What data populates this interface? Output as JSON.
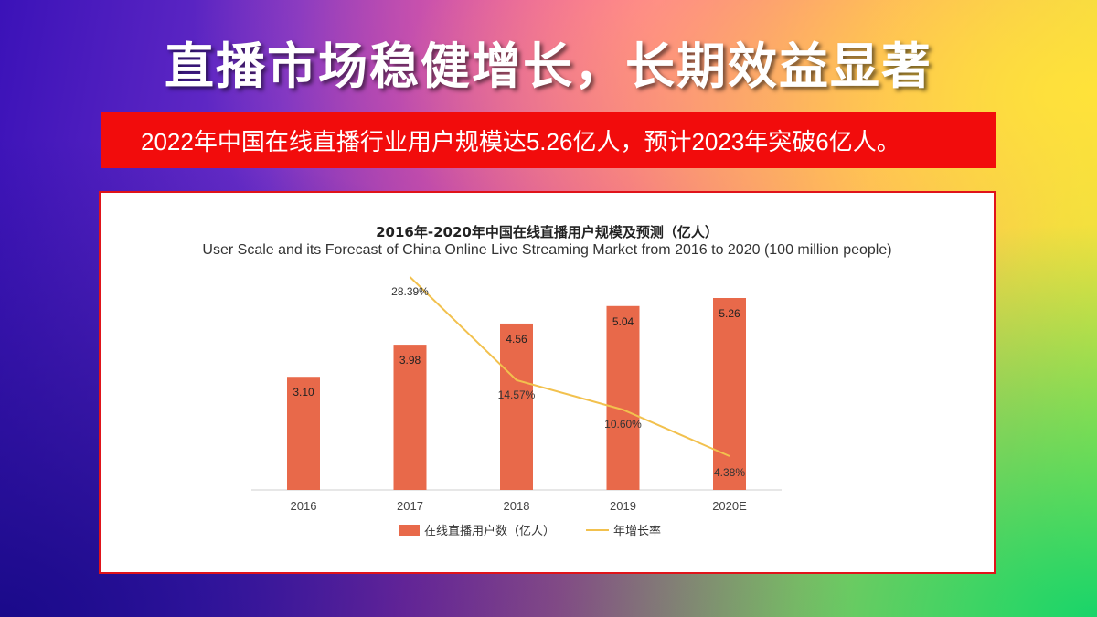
{
  "slide": {
    "title": "直播市场稳健增长，长期效益显著",
    "banner": "2022年中国在线直播行业用户规模达5.26亿人，预计2023年突破6亿人。"
  },
  "colors": {
    "bar": "#e8694a",
    "line": "#f2c14e",
    "banner": "#f20c0c",
    "panel_border": "#e0131a"
  },
  "chart_data": {
    "type": "bar",
    "title": "2016年-2020年中国在线直播用户规模及预测（亿人）",
    "subtitle": "User Scale and its Forecast of China Online Live Streaming Market from 2016 to 2020 (100 million people)",
    "categories": [
      "2016",
      "2017",
      "2018",
      "2019",
      "2020E"
    ],
    "series": [
      {
        "name": "在线直播用户数（亿人）",
        "type": "bar",
        "values": [
          3.1,
          3.98,
          4.56,
          5.04,
          5.26
        ],
        "labels": [
          "3.10",
          "3.98",
          "4.56",
          "5.04",
          "5.26"
        ]
      },
      {
        "name": "年增长率",
        "type": "line",
        "values": [
          null,
          28.39,
          14.57,
          10.6,
          4.38
        ],
        "labels": [
          "",
          "28.39%",
          "14.57%",
          "10.60%",
          "4.38%"
        ]
      }
    ],
    "legend": "bottom-center",
    "grid": false
  }
}
